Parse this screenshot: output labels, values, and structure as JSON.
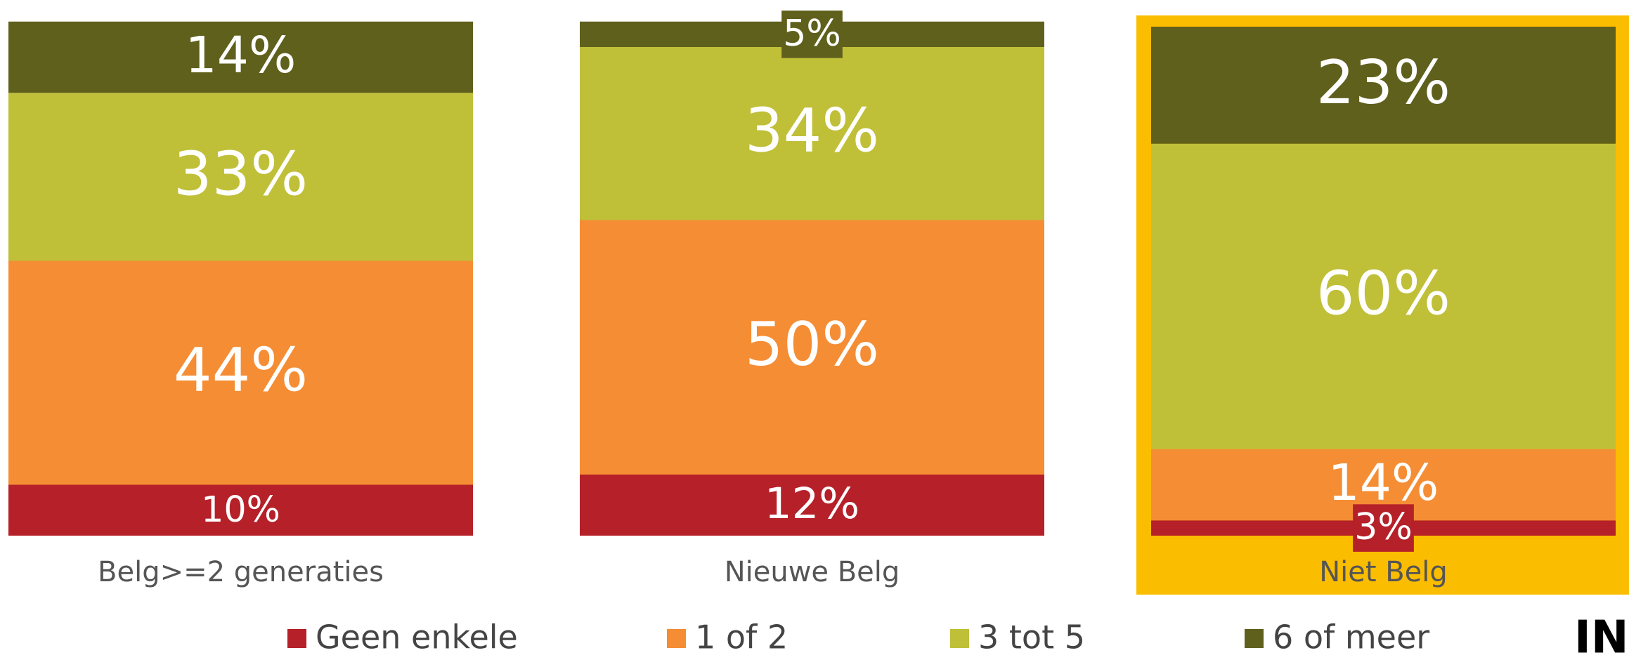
{
  "chart_data": {
    "type": "stacked_bar",
    "categories": [
      "Belg>=2 generaties",
      "Nieuwe Belg",
      "Niet Belg"
    ],
    "highlight": "Niet Belg",
    "series": [
      {
        "name": "Geen enkele",
        "color": "#b52029",
        "values": [
          10,
          12,
          3
        ],
        "value_labels": [
          "10%",
          "12%",
          "3%"
        ]
      },
      {
        "name": "1 of 2",
        "color": "#f58d34",
        "values": [
          44,
          50,
          14
        ],
        "value_labels": [
          "44%",
          "50%",
          "14%"
        ]
      },
      {
        "name": "3 tot 5",
        "color": "#c0bf38",
        "values": [
          33,
          34,
          60
        ],
        "value_labels": [
          "33%",
          "34%",
          "60%"
        ]
      },
      {
        "name": "6 of meer",
        "color": "#60601d",
        "values": [
          14,
          5,
          23
        ],
        "value_labels": [
          "14%",
          "5%",
          "23%"
        ]
      }
    ],
    "logo": "INI"
  }
}
